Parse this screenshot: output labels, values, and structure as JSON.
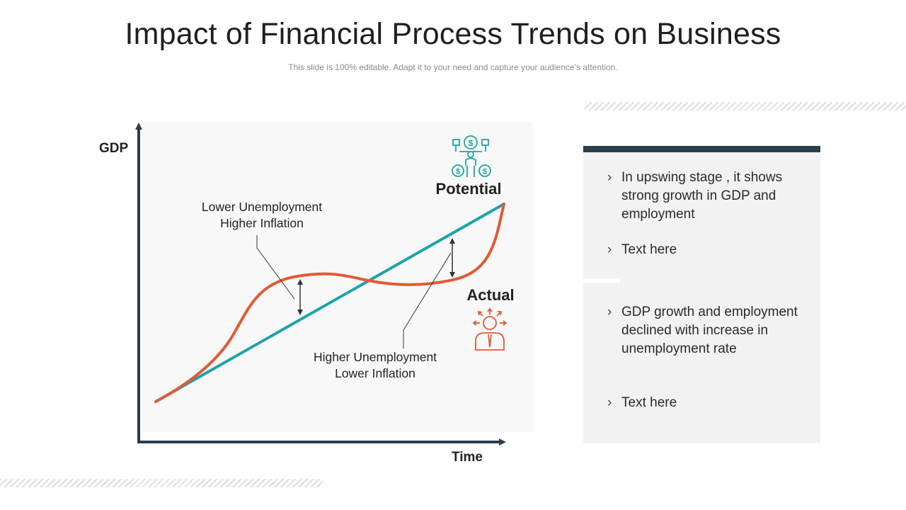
{
  "slide": {
    "title": "Impact of Financial Process Trends on Business",
    "subtitle": "This slide is 100% editable. Adapt it to your need and capture your audience’s attention."
  },
  "diagram": {
    "y_axis_label": "GDP",
    "x_axis_label": "Time",
    "potential_label": "Potential",
    "actual_label": "Actual",
    "annotation_upper": [
      "Lower Unemployment",
      "Higher Inflation"
    ],
    "annotation_lower": [
      "Higher Unemployment",
      "Lower Inflation"
    ],
    "potential_icon": "team-dollar-icon",
    "actual_icon": "person-arrows-icon",
    "colors": {
      "potential_line": "#1fa3a8",
      "actual_line": "#e05a35",
      "axis": "#2b3d4a",
      "plot_bg": "#f8f8f8"
    }
  },
  "panel": {
    "bullets_top": [
      "In upswing stage , it shows strong growth in GDP and employment",
      "Text here"
    ],
    "bullets_bottom": [
      "GDP growth and employment  declined with increase in unemployment  rate",
      "Text here"
    ],
    "chevron": "›",
    "colors": {
      "header_bar": "#2b3d4a",
      "background": "#f2f2f2"
    }
  }
}
